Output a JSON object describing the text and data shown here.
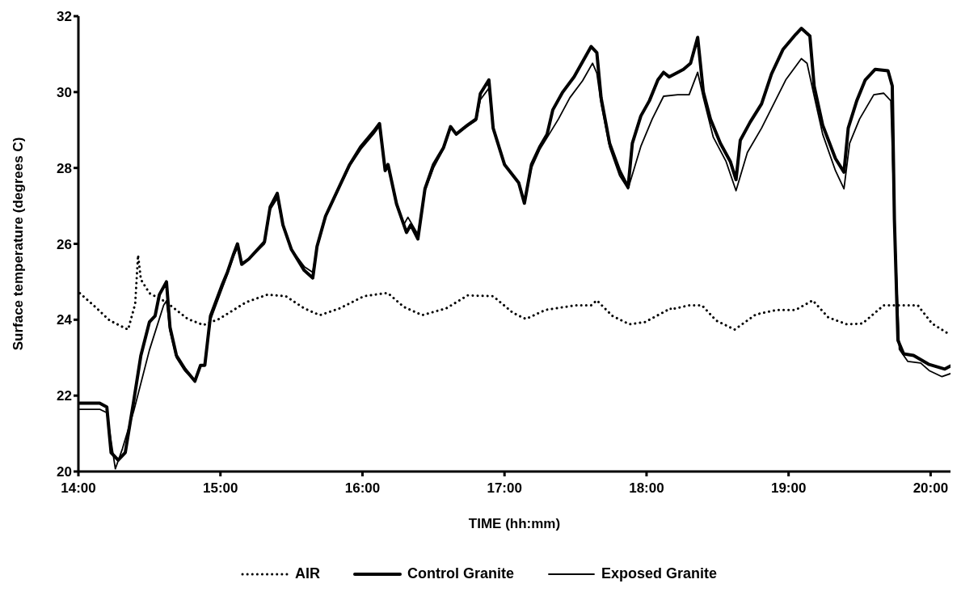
{
  "chart_data": {
    "type": "line",
    "xlabel": "TIME (hh:mm)",
    "ylabel": "Surface temperature (degrees C)",
    "xlim": [
      14,
      20.14
    ],
    "xticks": [
      {
        "value": 14,
        "label": "14:00"
      },
      {
        "value": 15,
        "label": "15:00"
      },
      {
        "value": 16,
        "label": "16:00"
      },
      {
        "value": 17,
        "label": "17:00"
      },
      {
        "value": 18,
        "label": "18:00"
      },
      {
        "value": 19,
        "label": "19:00"
      },
      {
        "value": 20,
        "label": "20:00"
      }
    ],
    "ylim": [
      20,
      32
    ],
    "yticks": [
      20,
      22,
      24,
      26,
      28,
      30,
      32
    ],
    "grid": false,
    "legend": "bottom",
    "marker": "none",
    "series": [
      {
        "name": "AIR",
        "color": "#000000",
        "line_style": "dotted",
        "x": [
          14.01,
          14.13,
          14.22,
          14.35,
          14.4,
          14.42,
          14.44,
          14.5,
          14.62,
          14.77,
          14.88,
          14.99,
          15.18,
          15.33,
          15.46,
          15.59,
          15.7,
          15.84,
          16.01,
          16.16,
          16.18,
          16.29,
          16.42,
          16.59,
          16.74,
          16.92,
          17.06,
          17.15,
          17.29,
          17.5,
          17.61,
          17.65,
          17.76,
          17.88,
          17.99,
          18.17,
          18.17,
          18.3,
          18.39,
          18.49,
          18.62,
          18.77,
          18.92,
          19.05,
          19.17,
          19.28,
          19.41,
          19.52,
          19.67,
          19.91,
          20.01,
          20.13
        ],
        "values": [
          24.7,
          24.3,
          23.98,
          23.74,
          24.42,
          25.7,
          25.06,
          24.7,
          24.46,
          24.02,
          23.86,
          24.02,
          24.46,
          24.66,
          24.62,
          24.3,
          24.12,
          24.3,
          24.62,
          24.7,
          24.7,
          24.34,
          24.12,
          24.3,
          24.64,
          24.62,
          24.18,
          24.02,
          24.26,
          24.38,
          24.38,
          24.51,
          24.1,
          23.88,
          23.94,
          24.3,
          24.27,
          24.38,
          24.38,
          23.98,
          23.74,
          24.14,
          24.26,
          24.26,
          24.51,
          24.06,
          23.88,
          23.9,
          24.38,
          24.38,
          23.9,
          23.62
        ]
      },
      {
        "name": "Control Granite",
        "color": "#000000",
        "line_style": "solid",
        "x": [
          14.01,
          14.15,
          14.2,
          14.23,
          14.28,
          14.33,
          14.39,
          14.44,
          14.5,
          14.54,
          14.57,
          14.62,
          14.645,
          14.69,
          14.75,
          14.82,
          14.86,
          14.89,
          14.93,
          15.01,
          15.05,
          15.09,
          15.12,
          15.15,
          15.2,
          15.31,
          15.35,
          15.4,
          15.44,
          15.5,
          15.59,
          15.65,
          15.68,
          15.74,
          15.84,
          15.91,
          15.99,
          16.08,
          16.12,
          16.16,
          16.18,
          16.24,
          16.31,
          16.34,
          16.39,
          16.44,
          16.5,
          16.57,
          16.62,
          16.66,
          16.74,
          16.8,
          16.83,
          16.89,
          16.92,
          17.0,
          17.1,
          17.14,
          17.19,
          17.25,
          17.3,
          17.34,
          17.41,
          17.49,
          17.55,
          17.61,
          17.65,
          17.68,
          17.74,
          17.81,
          17.87,
          17.9,
          17.96,
          18.02,
          18.08,
          18.12,
          18.16,
          18.22,
          18.26,
          18.31,
          18.36,
          18.4,
          18.45,
          18.52,
          18.59,
          18.63,
          18.66,
          18.73,
          18.81,
          18.88,
          18.96,
          19.05,
          19.09,
          19.15,
          19.18,
          19.24,
          19.33,
          19.39,
          19.42,
          19.48,
          19.54,
          19.61,
          19.7,
          19.73,
          19.745,
          19.77,
          19.81,
          19.88,
          19.99,
          20.1,
          20.14
        ],
        "values": [
          21.8,
          21.8,
          21.7,
          20.5,
          20.3,
          20.5,
          21.87,
          23.06,
          23.94,
          24.1,
          24.66,
          25.0,
          23.8,
          23.06,
          22.7,
          22.38,
          22.8,
          22.8,
          24.1,
          24.9,
          25.26,
          25.7,
          26.0,
          25.46,
          25.6,
          26.05,
          26.97,
          27.33,
          26.5,
          25.85,
          25.3,
          25.1,
          25.93,
          26.73,
          27.53,
          28.09,
          28.57,
          28.97,
          29.17,
          27.93,
          28.09,
          27.05,
          26.3,
          26.5,
          26.13,
          27.45,
          28.09,
          28.53,
          29.09,
          28.89,
          29.13,
          29.29,
          29.96,
          30.32,
          29.05,
          28.09,
          27.61,
          27.07,
          28.09,
          28.57,
          28.89,
          29.53,
          30.0,
          30.4,
          30.8,
          31.2,
          31.04,
          29.85,
          28.65,
          27.93,
          27.49,
          28.65,
          29.37,
          29.77,
          30.32,
          30.52,
          30.4,
          30.52,
          30.6,
          30.76,
          31.44,
          30.0,
          29.29,
          28.65,
          28.17,
          27.69,
          28.73,
          29.21,
          29.69,
          30.48,
          31.12,
          31.52,
          31.68,
          31.48,
          30.16,
          29.13,
          28.25,
          27.89,
          29.05,
          29.77,
          30.32,
          30.6,
          30.56,
          30.16,
          26.65,
          23.46,
          23.1,
          23.06,
          22.82,
          22.7,
          22.78
        ]
      },
      {
        "name": "Exposed Granite",
        "color": "#000000",
        "line_style": "solid",
        "x": [
          14.01,
          14.15,
          14.2,
          14.26,
          14.31,
          14.39,
          14.5,
          14.6,
          14.62,
          14.645,
          14.69,
          14.75,
          14.82,
          14.86,
          14.89,
          14.93,
          15.01,
          15.05,
          15.09,
          15.12,
          15.15,
          15.2,
          15.31,
          15.35,
          15.4,
          15.44,
          15.5,
          15.59,
          15.65,
          15.68,
          15.74,
          15.84,
          15.91,
          15.99,
          16.08,
          16.12,
          16.16,
          16.18,
          16.24,
          16.29,
          16.32,
          16.39,
          16.44,
          16.5,
          16.57,
          16.62,
          16.66,
          16.74,
          16.8,
          16.83,
          16.89,
          16.92,
          17.0,
          17.1,
          17.14,
          17.19,
          17.25,
          17.3,
          17.38,
          17.46,
          17.55,
          17.62,
          17.65,
          17.68,
          17.74,
          17.81,
          17.87,
          17.96,
          18.04,
          18.12,
          18.22,
          18.3,
          18.36,
          18.4,
          18.47,
          18.56,
          18.63,
          18.71,
          18.81,
          18.98,
          19.09,
          19.13,
          19.18,
          19.24,
          19.33,
          19.39,
          19.43,
          19.5,
          19.6,
          19.67,
          19.72,
          19.745,
          19.78,
          19.84,
          19.93,
          19.99,
          20.08,
          20.14
        ],
        "values": [
          21.64,
          21.64,
          21.55,
          20.07,
          20.6,
          21.6,
          23.2,
          24.38,
          24.5,
          23.7,
          23.0,
          22.65,
          22.38,
          22.8,
          22.8,
          24.0,
          24.8,
          25.2,
          25.65,
          25.9,
          25.5,
          25.6,
          26.0,
          26.9,
          27.2,
          26.5,
          25.85,
          25.4,
          25.25,
          25.9,
          26.7,
          27.5,
          28.05,
          28.5,
          28.9,
          29.1,
          27.95,
          28.1,
          27.1,
          26.5,
          26.7,
          26.25,
          27.4,
          28.0,
          28.5,
          29.05,
          28.9,
          29.1,
          29.25,
          29.8,
          30.1,
          29.05,
          28.1,
          27.6,
          27.1,
          28.0,
          28.5,
          28.8,
          29.29,
          29.85,
          30.3,
          30.76,
          30.5,
          29.7,
          28.55,
          27.8,
          27.45,
          28.57,
          29.29,
          29.89,
          29.93,
          29.93,
          30.52,
          29.85,
          28.81,
          28.17,
          27.4,
          28.41,
          29.05,
          30.32,
          30.88,
          30.76,
          29.9,
          28.89,
          27.93,
          27.45,
          28.65,
          29.29,
          29.93,
          29.97,
          29.77,
          26.65,
          23.22,
          22.9,
          22.86,
          22.66,
          22.5,
          22.58
        ]
      }
    ]
  }
}
